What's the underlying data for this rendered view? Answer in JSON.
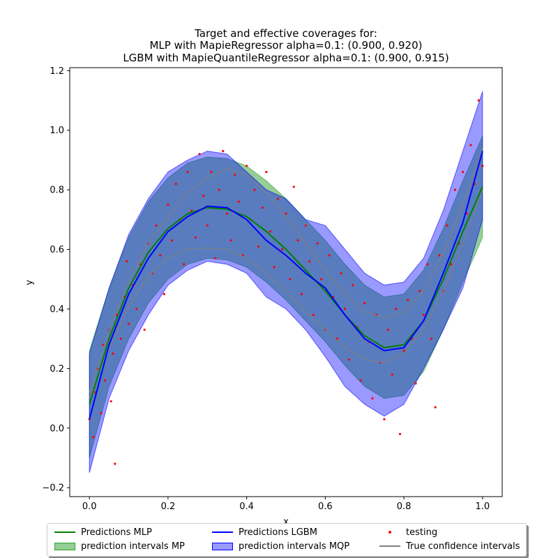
{
  "chart_data": {
    "type": "line",
    "title_lines": [
      "Target and effective coverages for:",
      "MLP with MapieRegressor alpha=0.1: (0.900, 0.920)",
      "LGBM with MapieQuantileRegressor alpha=0.1: (0.900, 0.915)"
    ],
    "xlabel": "x",
    "ylabel": "y",
    "xlim": [
      -0.05,
      1.05
    ],
    "ylim": [
      -0.23,
      1.21
    ],
    "xticks": [
      0.0,
      0.2,
      0.4,
      0.6,
      0.8,
      1.0
    ],
    "xtick_labels": [
      "0.0",
      "0.2",
      "0.4",
      "0.6",
      "0.8",
      "1.0"
    ],
    "yticks": [
      -0.2,
      0.0,
      0.2,
      0.4,
      0.6,
      0.8,
      1.0,
      1.2
    ],
    "ytick_labels": [
      "−0.2",
      "0.0",
      "0.2",
      "0.4",
      "0.6",
      "0.8",
      "1.0",
      "1.2"
    ],
    "grid": false,
    "legend_position": "below plot, 3 columns",
    "colors": {
      "mlp_line": "#008000",
      "mp_band": "#2ca02c",
      "lgbm_line": "#0000ff",
      "mqp_band": "#0000ff",
      "testing": "#ff0000",
      "true_ci": "#808080"
    },
    "x": [
      0.0,
      0.05,
      0.1,
      0.15,
      0.2,
      0.25,
      0.3,
      0.35,
      0.4,
      0.45,
      0.5,
      0.55,
      0.6,
      0.65,
      0.7,
      0.75,
      0.8,
      0.85,
      0.9,
      0.95,
      1.0
    ],
    "series": [
      {
        "name": "Predictions MLP",
        "kind": "line",
        "values": [
          0.08,
          0.3,
          0.47,
          0.59,
          0.67,
          0.72,
          0.74,
          0.735,
          0.71,
          0.66,
          0.6,
          0.53,
          0.46,
          0.38,
          0.31,
          0.27,
          0.28,
          0.36,
          0.5,
          0.66,
          0.81
        ]
      },
      {
        "name": "Predictions LGBM",
        "kind": "line",
        "values": [
          0.03,
          0.28,
          0.45,
          0.57,
          0.66,
          0.71,
          0.745,
          0.74,
          0.7,
          0.63,
          0.58,
          0.52,
          0.47,
          0.38,
          0.3,
          0.26,
          0.27,
          0.36,
          0.52,
          0.69,
          0.93
        ]
      },
      {
        "name": "prediction intervals MP",
        "kind": "band",
        "lower": [
          -0.1,
          0.14,
          0.3,
          0.42,
          0.5,
          0.55,
          0.57,
          0.565,
          0.54,
          0.49,
          0.43,
          0.36,
          0.29,
          0.21,
          0.14,
          0.1,
          0.11,
          0.19,
          0.33,
          0.49,
          0.64
        ],
        "upper": [
          0.26,
          0.47,
          0.64,
          0.76,
          0.84,
          0.89,
          0.91,
          0.905,
          0.88,
          0.83,
          0.77,
          0.7,
          0.63,
          0.55,
          0.48,
          0.44,
          0.45,
          0.53,
          0.67,
          0.83,
          0.98
        ]
      },
      {
        "name": "prediction intervals MQP",
        "kind": "band",
        "lower": [
          -0.15,
          0.1,
          0.26,
          0.38,
          0.48,
          0.53,
          0.56,
          0.55,
          0.52,
          0.44,
          0.4,
          0.33,
          0.24,
          0.14,
          0.08,
          0.04,
          0.08,
          0.2,
          0.33,
          0.47,
          0.7
        ],
        "upper": [
          0.25,
          0.47,
          0.65,
          0.77,
          0.86,
          0.9,
          0.93,
          0.92,
          0.86,
          0.8,
          0.77,
          0.7,
          0.68,
          0.6,
          0.52,
          0.48,
          0.49,
          0.57,
          0.73,
          0.93,
          1.13
        ]
      },
      {
        "name": "True confidence intervals",
        "kind": "lines",
        "lower": [
          0.1,
          0.27,
          0.41,
          0.51,
          0.57,
          0.6,
          0.605,
          0.6,
          0.57,
          0.52,
          0.46,
          0.39,
          0.33,
          0.27,
          0.23,
          0.22,
          0.25,
          0.33,
          0.46,
          0.62,
          0.8
        ],
        "upper": [
          0.12,
          0.33,
          0.49,
          0.62,
          0.71,
          0.79,
          0.84,
          0.87,
          0.85,
          0.79,
          0.71,
          0.62,
          0.53,
          0.45,
          0.39,
          0.37,
          0.39,
          0.46,
          0.59,
          0.75,
          0.94
        ]
      },
      {
        "name": "testing",
        "kind": "scatter",
        "points": [
          [
            0.0,
            0.03
          ],
          [
            0.01,
            -0.03
          ],
          [
            0.015,
            0.12
          ],
          [
            0.02,
            0.2
          ],
          [
            0.03,
            0.05
          ],
          [
            0.035,
            0.28
          ],
          [
            0.04,
            0.16
          ],
          [
            0.05,
            0.33
          ],
          [
            0.055,
            0.09
          ],
          [
            0.06,
            0.25
          ],
          [
            0.065,
            -0.12
          ],
          [
            0.07,
            0.38
          ],
          [
            0.08,
            0.3
          ],
          [
            0.09,
            0.44
          ],
          [
            0.095,
            0.56
          ],
          [
            0.1,
            0.35
          ],
          [
            0.11,
            0.48
          ],
          [
            0.12,
            0.4
          ],
          [
            0.13,
            0.55
          ],
          [
            0.14,
            0.33
          ],
          [
            0.15,
            0.62
          ],
          [
            0.16,
            0.52
          ],
          [
            0.17,
            0.68
          ],
          [
            0.18,
            0.58
          ],
          [
            0.19,
            0.45
          ],
          [
            0.2,
            0.75
          ],
          [
            0.21,
            0.63
          ],
          [
            0.22,
            0.82
          ],
          [
            0.23,
            0.7
          ],
          [
            0.24,
            0.55
          ],
          [
            0.25,
            0.86
          ],
          [
            0.26,
            0.73
          ],
          [
            0.27,
            0.64
          ],
          [
            0.28,
            0.92
          ],
          [
            0.29,
            0.78
          ],
          [
            0.3,
            0.68
          ],
          [
            0.31,
            0.86
          ],
          [
            0.32,
            0.57
          ],
          [
            0.33,
            0.8
          ],
          [
            0.34,
            0.93
          ],
          [
            0.35,
            0.72
          ],
          [
            0.36,
            0.63
          ],
          [
            0.37,
            0.85
          ],
          [
            0.38,
            0.76
          ],
          [
            0.39,
            0.58
          ],
          [
            0.4,
            0.88
          ],
          [
            0.41,
            0.7
          ],
          [
            0.42,
            0.8
          ],
          [
            0.43,
            0.61
          ],
          [
            0.44,
            0.74
          ],
          [
            0.45,
            0.86
          ],
          [
            0.46,
            0.66
          ],
          [
            0.47,
            0.54
          ],
          [
            0.48,
            0.77
          ],
          [
            0.49,
            0.6
          ],
          [
            0.5,
            0.72
          ],
          [
            0.51,
            0.5
          ],
          [
            0.52,
            0.81
          ],
          [
            0.53,
            0.63
          ],
          [
            0.54,
            0.45
          ],
          [
            0.55,
            0.68
          ],
          [
            0.56,
            0.56
          ],
          [
            0.57,
            0.38
          ],
          [
            0.58,
            0.62
          ],
          [
            0.59,
            0.5
          ],
          [
            0.6,
            0.33
          ],
          [
            0.61,
            0.58
          ],
          [
            0.62,
            0.44
          ],
          [
            0.63,
            0.3
          ],
          [
            0.64,
            0.52
          ],
          [
            0.65,
            0.4
          ],
          [
            0.66,
            0.23
          ],
          [
            0.67,
            0.48
          ],
          [
            0.68,
            0.34
          ],
          [
            0.69,
            0.16
          ],
          [
            0.7,
            0.42
          ],
          [
            0.71,
            0.29
          ],
          [
            0.72,
            0.1
          ],
          [
            0.73,
            0.38
          ],
          [
            0.74,
            0.22
          ],
          [
            0.75,
            0.03
          ],
          [
            0.76,
            0.33
          ],
          [
            0.77,
            0.18
          ],
          [
            0.78,
            0.4
          ],
          [
            0.79,
            -0.02
          ],
          [
            0.8,
            0.26
          ],
          [
            0.81,
            0.43
          ],
          [
            0.82,
            0.3
          ],
          [
            0.83,
            0.15
          ],
          [
            0.84,
            0.46
          ],
          [
            0.85,
            0.38
          ],
          [
            0.86,
            0.55
          ],
          [
            0.87,
            0.3
          ],
          [
            0.88,
            0.07
          ],
          [
            0.89,
            0.58
          ],
          [
            0.9,
            0.46
          ],
          [
            0.91,
            0.68
          ],
          [
            0.92,
            0.55
          ],
          [
            0.93,
            0.8
          ],
          [
            0.94,
            0.62
          ],
          [
            0.95,
            0.86
          ],
          [
            0.96,
            0.72
          ],
          [
            0.97,
            0.95
          ],
          [
            0.98,
            0.82
          ],
          [
            0.99,
            1.1
          ],
          [
            1.0,
            0.88
          ]
        ]
      }
    ]
  }
}
